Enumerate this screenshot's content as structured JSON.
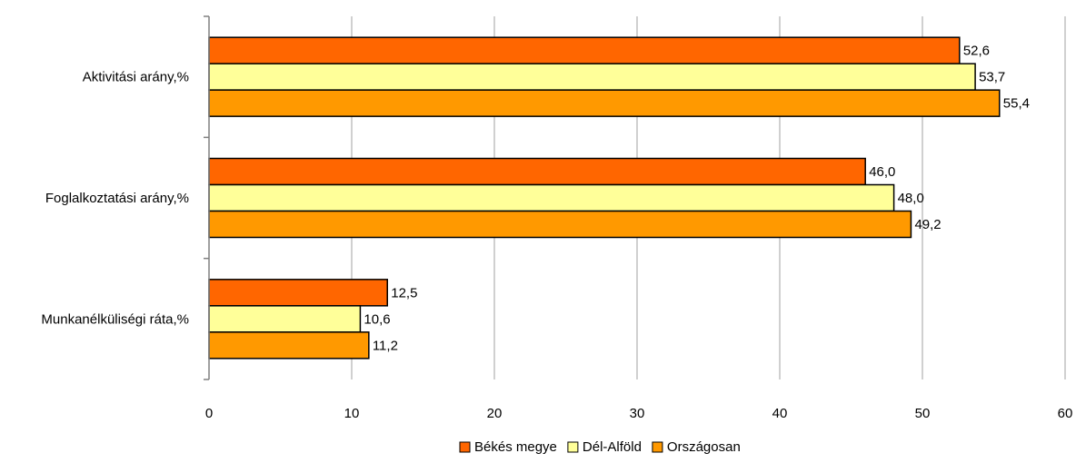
{
  "chart_data": {
    "type": "bar",
    "orientation": "horizontal",
    "categories": [
      "Aktivitási arány,%",
      "Foglalkoztatási arány,%",
      "Munkanélküliségi ráta,%"
    ],
    "series": [
      {
        "name": "Békés megye",
        "color": "#ff6600",
        "values": [
          52.6,
          46.0,
          12.5
        ],
        "labels": [
          "52,6",
          "46,0",
          "12,5"
        ]
      },
      {
        "name": "Dél-Alföld",
        "color": "#ffff99",
        "values": [
          53.7,
          48.0,
          10.6
        ],
        "labels": [
          "53,7",
          "48,0",
          "10,6"
        ]
      },
      {
        "name": "Országosan",
        "color": "#ff9900",
        "values": [
          55.4,
          49.2,
          11.2
        ],
        "labels": [
          "55,4",
          "49,2",
          "11,2"
        ]
      }
    ],
    "xlim": [
      0,
      60
    ],
    "xticks": [
      0,
      10,
      20,
      30,
      40,
      50,
      60
    ],
    "title": "",
    "xlabel": "",
    "ylabel": "",
    "grid": true,
    "legend": "bottom"
  }
}
